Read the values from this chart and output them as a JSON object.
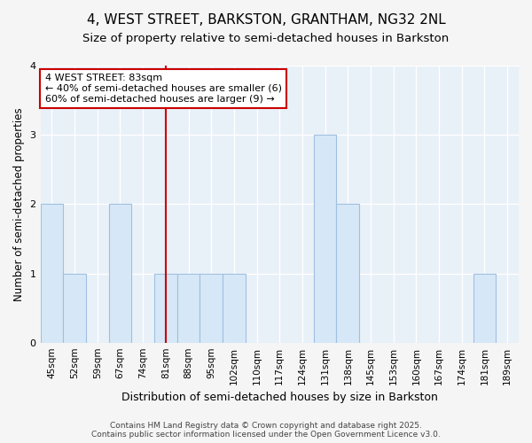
{
  "title_line1": "4, WEST STREET, BARKSTON, GRANTHAM, NG32 2NL",
  "title_line2": "Size of property relative to semi-detached houses in Barkston",
  "xlabel": "Distribution of semi-detached houses by size in Barkston",
  "ylabel": "Number of semi-detached properties",
  "categories": [
    "45sqm",
    "52sqm",
    "59sqm",
    "67sqm",
    "74sqm",
    "81sqm",
    "88sqm",
    "95sqm",
    "102sqm",
    "110sqm",
    "117sqm",
    "124sqm",
    "131sqm",
    "138sqm",
    "145sqm",
    "153sqm",
    "160sqm",
    "167sqm",
    "174sqm",
    "181sqm",
    "189sqm"
  ],
  "values": [
    2,
    1,
    0,
    2,
    0,
    1,
    1,
    1,
    1,
    0,
    0,
    0,
    3,
    2,
    0,
    0,
    0,
    0,
    0,
    1,
    0
  ],
  "bar_color": "#d6e8f7",
  "bar_edge_color": "#a0c0e0",
  "highlight_index": 5,
  "red_line_color": "#cc0000",
  "annotation_text": "4 WEST STREET: 83sqm\n← 40% of semi-detached houses are smaller (6)\n60% of semi-detached houses are larger (9) →",
  "annotation_box_color": "#ffffff",
  "annotation_box_edge_color": "#cc0000",
  "ylim": [
    0,
    4
  ],
  "yticks": [
    0,
    1,
    2,
    3,
    4
  ],
  "plot_bg_color": "#e8f0f8",
  "fig_bg_color": "#f5f5f5",
  "grid_color": "#ffffff",
  "footer_text": "Contains HM Land Registry data © Crown copyright and database right 2025.\nContains public sector information licensed under the Open Government Licence v3.0.",
  "title_fontsize": 11,
  "subtitle_fontsize": 9.5,
  "tick_fontsize": 7.5,
  "ylabel_fontsize": 8.5,
  "xlabel_fontsize": 9
}
